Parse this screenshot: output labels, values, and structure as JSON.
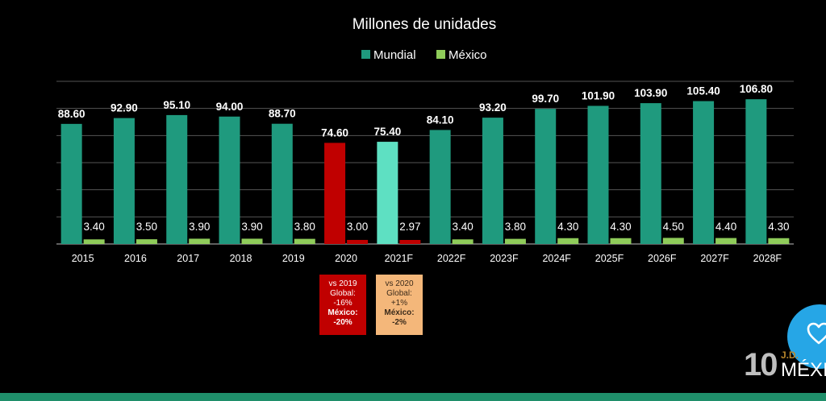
{
  "chart_data": {
    "type": "bar",
    "title": "Millones de unidades",
    "categories": [
      "2015",
      "2016",
      "2017",
      "2018",
      "2019",
      "2020",
      "2021F",
      "2022F",
      "2023F",
      "2024F",
      "2025F",
      "2026F",
      "2027F",
      "2028F"
    ],
    "series": [
      {
        "name": "Mundial",
        "color": "#1f9a7e",
        "values": [
          88.6,
          92.9,
          95.1,
          94.0,
          88.7,
          74.6,
          75.4,
          84.1,
          93.2,
          99.7,
          101.9,
          103.9,
          105.4,
          106.8
        ],
        "labels": [
          "88.60",
          "92.90",
          "95.10",
          "94.00",
          "88.70",
          "74.60",
          "75.40",
          "84.10",
          "93.20",
          "99.70",
          "101.90",
          "103.90",
          "105.40",
          "106.80"
        ]
      },
      {
        "name": "México",
        "color": "#8fcc5a",
        "values": [
          3.4,
          3.5,
          3.9,
          3.9,
          3.8,
          3.0,
          2.97,
          3.4,
          3.8,
          4.3,
          4.3,
          4.5,
          4.4,
          4.3
        ],
        "labels": [
          "3.40",
          "3.50",
          "3.90",
          "3.90",
          "3.80",
          "3.00",
          "2.97",
          "3.40",
          "3.80",
          "4.30",
          "4.30",
          "4.50",
          "4.40",
          "4.30"
        ]
      }
    ],
    "highlight_colors": {
      "2020": "#c00000",
      "2021F_mundial": "#5ee0c2",
      "2021F_mexico": "#c00000"
    },
    "ylim": [
      0,
      120
    ],
    "grid": true,
    "legend_position": "top-center"
  },
  "notes": {
    "n2020": {
      "line1": "vs 2019",
      "line2": "Global:",
      "line3": "-16%",
      "line4": "México:",
      "line5": "-20%"
    },
    "n2021": {
      "line1": "vs 2020",
      "line2": "Global:",
      "line3": "+1%",
      "line4": "México:",
      "line5": "-2%"
    }
  },
  "logo": {
    "number": "10",
    "brand": "J.D.",
    "country": "MÉXICO"
  }
}
